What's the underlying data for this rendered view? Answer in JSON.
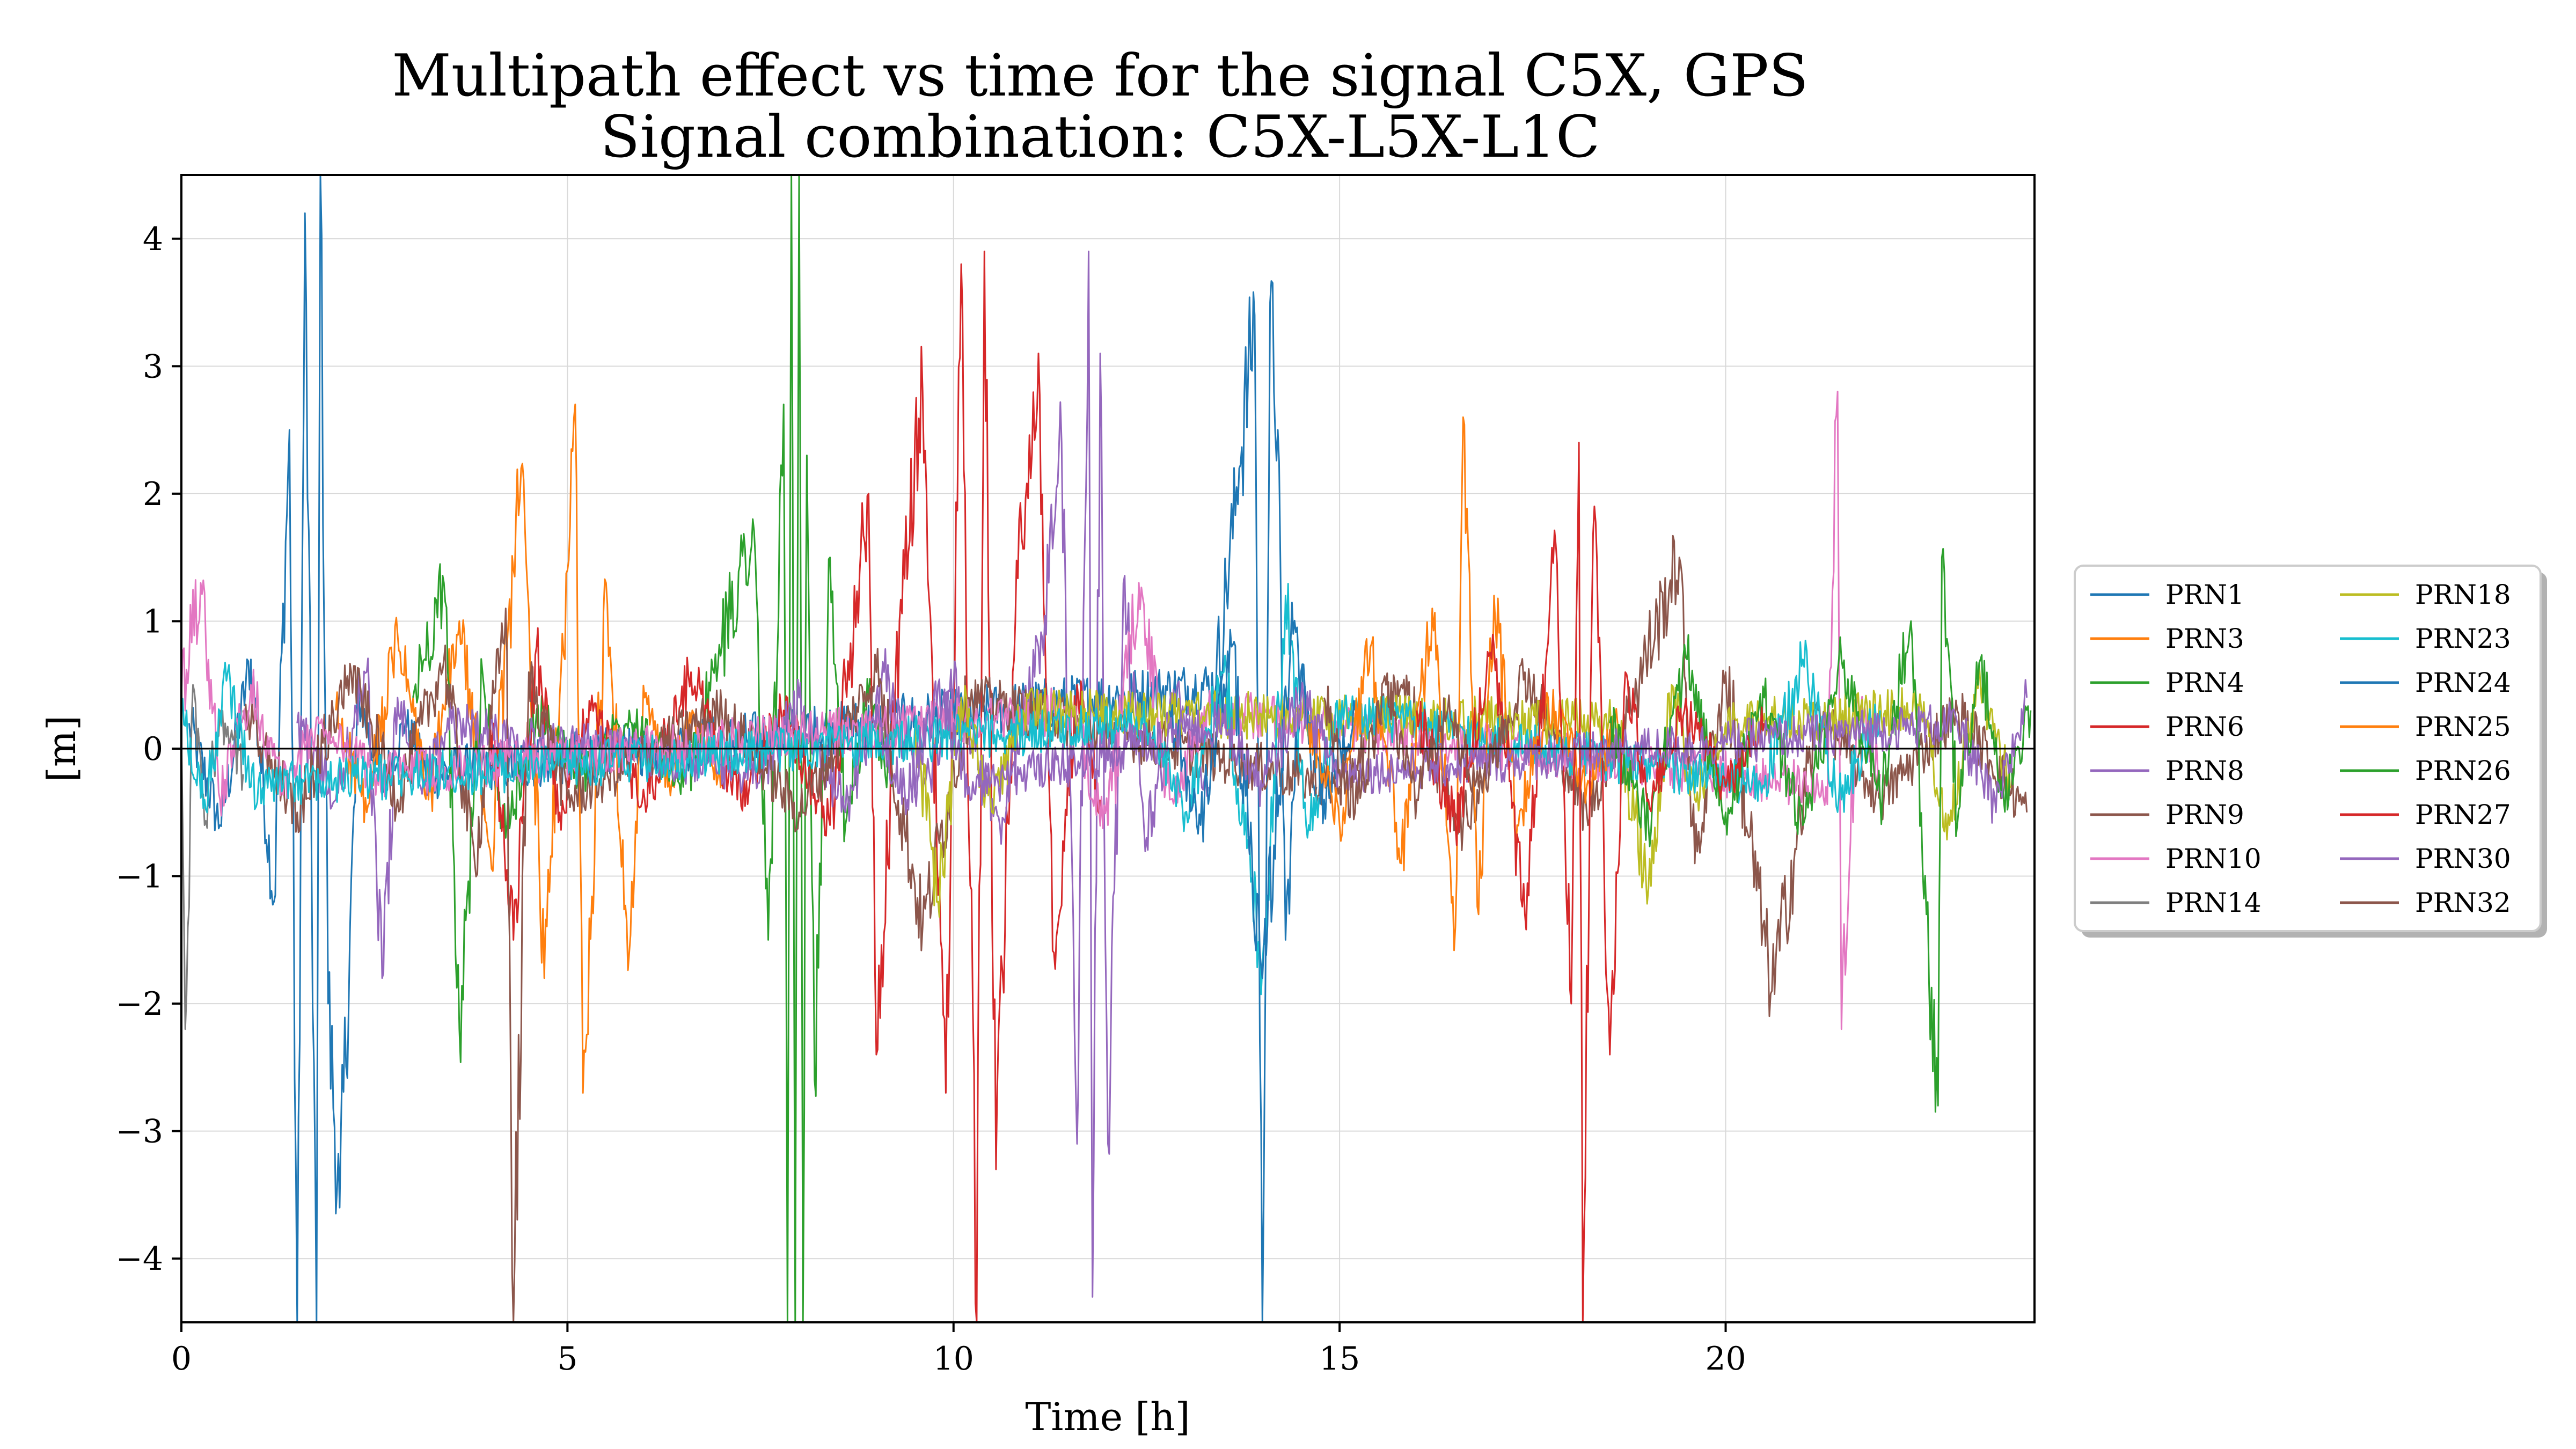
{
  "chart_data": {
    "type": "line",
    "title": "Multipath effect vs time for the signal C5X, GPS",
    "subtitle": "Signal combination: C5X-L5X-L1C",
    "xlabel": "Time [h]",
    "ylabel": "[m]",
    "xlim": [
      0,
      24
    ],
    "ylim": [
      -4.5,
      4.5
    ],
    "xticks": [
      0,
      5,
      10,
      15,
      20
    ],
    "yticks": [
      -4,
      -3,
      -2,
      -1,
      0,
      1,
      2,
      3,
      4
    ],
    "xtick_labels": [
      "0",
      "5",
      "10",
      "15",
      "20"
    ],
    "ytick_labels": [
      "−4",
      "−3",
      "−2",
      "−1",
      "0",
      "1",
      "2",
      "3",
      "4"
    ],
    "grid": true,
    "zero_line": true,
    "legend_position": "right-outside",
    "series": [
      {
        "name": "PRN1",
        "color": "#1f77b4",
        "points": [
          [
            0.1,
            0.2
          ],
          [
            0.5,
            -0.6
          ],
          [
            0.9,
            0.7
          ],
          [
            1.2,
            -1.2
          ],
          [
            1.4,
            2.5
          ],
          [
            1.5,
            -4.5
          ],
          [
            1.6,
            4.2
          ],
          [
            1.75,
            -4.5
          ],
          [
            1.8,
            4.5
          ],
          [
            1.9,
            -2.0
          ],
          [
            2.05,
            -3.6
          ],
          [
            2.3,
            0.4
          ],
          [
            2.6,
            -0.3
          ],
          [
            2.9,
            0.2
          ],
          [
            3.2,
            -0.2
          ],
          [
            13.4,
            0.5
          ],
          [
            13.7,
            2.2
          ],
          [
            13.9,
            3.4
          ],
          [
            14.0,
            -4.5
          ],
          [
            14.1,
            3.5
          ],
          [
            14.2,
            2.5
          ],
          [
            14.3,
            -1.5
          ],
          [
            14.5,
            0.6
          ],
          [
            14.7,
            -0.3
          ]
        ]
      },
      {
        "name": "PRN3",
        "color": "#ff7f0e",
        "points": [
          [
            2.0,
            0.3
          ],
          [
            2.4,
            -0.5
          ],
          [
            2.8,
            0.9
          ],
          [
            3.2,
            -0.4
          ],
          [
            3.6,
            1.0
          ],
          [
            4.0,
            -0.8
          ],
          [
            4.4,
            2.2
          ],
          [
            4.7,
            -1.8
          ],
          [
            5.0,
            1.4
          ],
          [
            5.1,
            2.7
          ],
          [
            5.2,
            -2.7
          ],
          [
            5.5,
            1.3
          ],
          [
            5.8,
            -1.6
          ],
          [
            6.0,
            0.4
          ],
          [
            6.3,
            -0.3
          ],
          [
            6.6,
            0.2
          ],
          [
            7.0,
            -0.2
          ]
        ]
      },
      {
        "name": "PRN4",
        "color": "#2ca02c",
        "points": [
          [
            3.0,
            0.4
          ],
          [
            3.4,
            1.3
          ],
          [
            3.6,
            -2.2
          ],
          [
            3.9,
            0.6
          ],
          [
            4.2,
            -0.7
          ],
          [
            4.6,
            0.3
          ],
          [
            5.2,
            -0.2
          ],
          [
            5.8,
            0.3
          ],
          [
            6.5,
            -0.3
          ],
          [
            7.0,
            0.8
          ],
          [
            7.4,
            1.8
          ],
          [
            7.6,
            -1.5
          ],
          [
            7.8,
            2.7
          ],
          [
            7.85,
            -4.5
          ],
          [
            7.9,
            4.5
          ],
          [
            7.95,
            -4.5
          ],
          [
            8.0,
            4.5
          ],
          [
            8.05,
            -4.5
          ],
          [
            8.1,
            2.3
          ],
          [
            8.2,
            -2.6
          ],
          [
            8.4,
            1.5
          ],
          [
            8.6,
            -0.6
          ],
          [
            8.9,
            0.4
          ],
          [
            9.2,
            -0.3
          ]
        ]
      },
      {
        "name": "PRN6",
        "color": "#d62728",
        "points": [
          [
            4.0,
            0.2
          ],
          [
            4.3,
            -1.5
          ],
          [
            4.6,
            0.8
          ],
          [
            4.9,
            -0.5
          ],
          [
            5.3,
            0.3
          ],
          [
            6.0,
            -0.4
          ],
          [
            6.6,
            0.6
          ],
          [
            7.2,
            -0.4
          ],
          [
            7.8,
            0.3
          ],
          [
            8.4,
            -0.6
          ],
          [
            8.9,
            2.0
          ],
          [
            9.0,
            -2.4
          ],
          [
            9.3,
            1.0
          ],
          [
            9.6,
            2.8
          ],
          [
            9.9,
            -2.7
          ],
          [
            10.1,
            3.8
          ],
          [
            10.3,
            -4.5
          ],
          [
            10.4,
            3.9
          ],
          [
            10.55,
            -3.3
          ],
          [
            10.8,
            1.0
          ],
          [
            11.1,
            3.1
          ],
          [
            11.3,
            -1.6
          ],
          [
            11.6,
            0.5
          ],
          [
            11.9,
            -0.4
          ]
        ]
      },
      {
        "name": "PRN8",
        "color": "#9467bd",
        "points": [
          [
            1.5,
            0.2
          ],
          [
            2.0,
            -0.4
          ],
          [
            2.4,
            0.6
          ],
          [
            2.6,
            -1.8
          ],
          [
            2.8,
            0.4
          ],
          [
            3.1,
            -0.3
          ],
          [
            3.5,
            0.2
          ],
          [
            7.5,
            -0.2
          ],
          [
            8.0,
            0.4
          ],
          [
            8.6,
            -0.5
          ],
          [
            9.1,
            0.6
          ],
          [
            9.6,
            -0.4
          ],
          [
            10.0,
            0.5
          ],
          [
            10.6,
            -0.6
          ],
          [
            11.1,
            0.8
          ],
          [
            11.4,
            2.4
          ],
          [
            11.6,
            -3.1
          ],
          [
            11.75,
            3.9
          ],
          [
            11.8,
            -4.3
          ],
          [
            11.9,
            3.1
          ],
          [
            12.0,
            -3.1
          ],
          [
            12.2,
            1.3
          ],
          [
            12.5,
            -0.7
          ],
          [
            12.9,
            0.5
          ],
          [
            13.3,
            -0.3
          ]
        ]
      },
      {
        "name": "PRN9",
        "color": "#8c564b",
        "points": [
          [
            0.8,
            0.3
          ],
          [
            1.5,
            -0.5
          ],
          [
            2.2,
            0.6
          ],
          [
            2.8,
            -0.4
          ],
          [
            3.4,
            0.7
          ],
          [
            3.8,
            -0.9
          ],
          [
            4.2,
            1.1
          ],
          [
            4.3,
            -4.5
          ],
          [
            4.5,
            0.6
          ],
          [
            5.0,
            -0.4
          ],
          [
            7.0,
            0.3
          ],
          [
            8.0,
            -0.5
          ],
          [
            9.0,
            0.6
          ],
          [
            9.6,
            -1.4
          ],
          [
            10.2,
            0.4
          ],
          [
            15.0,
            -0.3
          ],
          [
            15.8,
            0.5
          ],
          [
            16.6,
            -0.6
          ],
          [
            17.4,
            0.6
          ],
          [
            18.2,
            -0.5
          ],
          [
            18.8,
            0.4
          ],
          [
            19.4,
            1.5
          ],
          [
            19.6,
            -0.9
          ],
          [
            20.0,
            0.6
          ],
          [
            20.6,
            -1.9
          ],
          [
            21.2,
            0.3
          ],
          [
            22.0,
            -0.4
          ],
          [
            23.0,
            0.3
          ],
          [
            23.9,
            -0.5
          ]
        ]
      },
      {
        "name": "PRN10",
        "color": "#e377c2",
        "points": [
          [
            0.0,
            0.4
          ],
          [
            0.25,
            1.3
          ],
          [
            0.5,
            -0.4
          ],
          [
            0.9,
            0.5
          ],
          [
            1.3,
            -0.3
          ],
          [
            1.8,
            0.2
          ],
          [
            2.5,
            -0.2
          ],
          [
            11.5,
            0.3
          ],
          [
            12.0,
            -0.6
          ],
          [
            12.4,
            1.3
          ],
          [
            12.8,
            -0.4
          ],
          [
            13.3,
            0.3
          ],
          [
            21.3,
            -0.3
          ],
          [
            21.45,
            2.8
          ],
          [
            21.5,
            -2.2
          ],
          [
            21.7,
            0.4
          ],
          [
            22.0,
            -0.2
          ]
        ]
      },
      {
        "name": "PRN14",
        "color": "#7f7f7f",
        "points": [
          [
            0.0,
            0.1
          ],
          [
            0.05,
            -2.2
          ],
          [
            0.15,
            0.5
          ],
          [
            0.3,
            -0.6
          ],
          [
            0.5,
            0.3
          ],
          [
            0.8,
            -0.2
          ]
        ]
      },
      {
        "name": "PRN18",
        "color": "#bcbd22",
        "points": [
          [
            9.5,
            0.2
          ],
          [
            9.8,
            -1.2
          ],
          [
            10.1,
            0.4
          ],
          [
            10.5,
            -0.5
          ],
          [
            10.9,
            0.3
          ],
          [
            18.6,
            0.2
          ],
          [
            19.0,
            -1.1
          ],
          [
            19.3,
            0.5
          ],
          [
            19.6,
            -0.4
          ],
          [
            20.0,
            0.2
          ],
          [
            22.5,
            0.3
          ],
          [
            22.9,
            -0.6
          ],
          [
            23.3,
            0.5
          ],
          [
            23.7,
            -0.3
          ]
        ]
      },
      {
        "name": "PRN23",
        "color": "#17becf",
        "points": [
          [
            0.0,
            0.3
          ],
          [
            0.3,
            -0.4
          ],
          [
            0.6,
            0.6
          ],
          [
            0.9,
            -0.3
          ],
          [
            12.5,
            0.2
          ],
          [
            13.0,
            -0.5
          ],
          [
            13.5,
            0.6
          ],
          [
            14.0,
            -1.7
          ],
          [
            14.3,
            1.2
          ],
          [
            14.6,
            -0.6
          ],
          [
            15.0,
            0.3
          ],
          [
            20.5,
            -0.3
          ],
          [
            21.0,
            0.7
          ],
          [
            21.5,
            -0.4
          ],
          [
            22.0,
            0.3
          ]
        ]
      },
      {
        "name": "PRN24",
        "color": "#1f77b4",
        "points": [
          [
            12.8,
            0.3
          ],
          [
            13.2,
            -0.6
          ],
          [
            13.6,
            0.8
          ],
          [
            14.0,
            -1.8
          ],
          [
            14.4,
            0.9
          ],
          [
            14.8,
            -0.4
          ],
          [
            15.2,
            0.3
          ]
        ]
      },
      {
        "name": "PRN25",
        "color": "#ff7f0e",
        "points": [
          [
            14.6,
            0.2
          ],
          [
            15.0,
            -0.6
          ],
          [
            15.4,
            0.8
          ],
          [
            15.8,
            -0.9
          ],
          [
            16.2,
            1.1
          ],
          [
            16.5,
            -1.4
          ],
          [
            16.6,
            2.6
          ],
          [
            16.8,
            -1.3
          ],
          [
            17.0,
            1.2
          ],
          [
            17.3,
            -0.6
          ],
          [
            17.7,
            0.4
          ],
          [
            18.2,
            -0.3
          ],
          [
            18.6,
            0.2
          ]
        ]
      },
      {
        "name": "PRN26",
        "color": "#2ca02c",
        "points": [
          [
            18.5,
            0.2
          ],
          [
            19.0,
            -0.6
          ],
          [
            19.5,
            0.7
          ],
          [
            20.0,
            -0.5
          ],
          [
            20.5,
            0.4
          ],
          [
            21.0,
            -0.6
          ],
          [
            21.5,
            0.7
          ],
          [
            22.0,
            -0.4
          ],
          [
            22.4,
            1.0
          ],
          [
            22.6,
            -1.3
          ],
          [
            22.75,
            -2.8
          ],
          [
            22.8,
            1.5
          ],
          [
            23.0,
            -0.6
          ],
          [
            23.3,
            0.7
          ],
          [
            23.6,
            -0.4
          ],
          [
            23.95,
            0.3
          ]
        ]
      },
      {
        "name": "PRN27",
        "color": "#d62728",
        "points": [
          [
            16.0,
            0.3
          ],
          [
            16.5,
            -0.6
          ],
          [
            17.0,
            0.8
          ],
          [
            17.4,
            -1.3
          ],
          [
            17.8,
            1.6
          ],
          [
            18.0,
            -2.0
          ],
          [
            18.1,
            2.4
          ],
          [
            18.15,
            -4.5
          ],
          [
            18.3,
            1.9
          ],
          [
            18.5,
            -2.4
          ],
          [
            18.7,
            0.6
          ],
          [
            19.0,
            -0.4
          ],
          [
            19.5,
            0.3
          ],
          [
            20.0,
            -0.3
          ],
          [
            20.5,
            0.2
          ]
        ]
      },
      {
        "name": "PRN30",
        "color": "#9467bd",
        "points": [
          [
            9.0,
            0.2
          ],
          [
            9.4,
            -0.4
          ],
          [
            9.8,
            0.5
          ],
          [
            10.2,
            -0.3
          ],
          [
            13.5,
            0.2
          ],
          [
            14.0,
            -0.3
          ],
          [
            14.5,
            0.4
          ],
          [
            15.0,
            -0.2
          ],
          [
            23.0,
            0.2
          ],
          [
            23.5,
            -0.5
          ],
          [
            23.9,
            0.4
          ]
        ]
      },
      {
        "name": "PRN32",
        "color": "#8c564b",
        "points": [
          [
            14.8,
            0.4
          ],
          [
            15.2,
            -0.5
          ],
          [
            15.6,
            0.5
          ],
          [
            16.0,
            -0.4
          ],
          [
            16.4,
            0.3
          ],
          [
            16.8,
            -0.3
          ],
          [
            17.2,
            0.2
          ]
        ]
      }
    ]
  }
}
